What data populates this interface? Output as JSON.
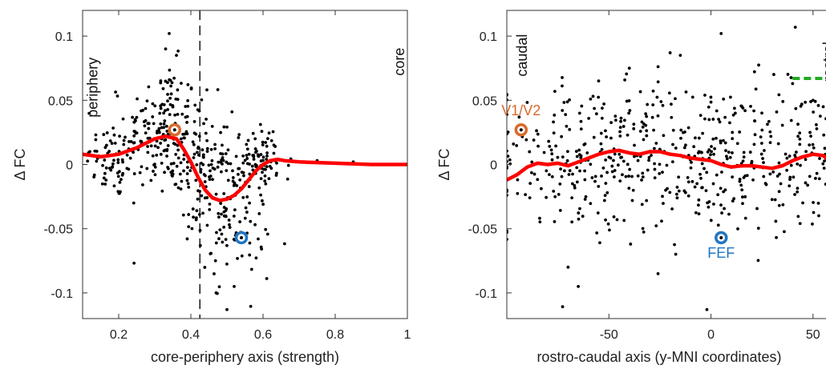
{
  "colors": {
    "points": "#000000",
    "fit": "#ff0000",
    "v1v2": "#d9692a",
    "fef": "#1f77c4",
    "rostral_line": "#22aa22",
    "axes": "#333333"
  },
  "chart_data": [
    {
      "type": "scatter",
      "xlabel": "core-periphery axis (strength)",
      "ylabel": "Δ FC",
      "xlim": [
        0.1,
        1.0
      ],
      "ylim": [
        -0.12,
        0.12
      ],
      "xticks": [
        0.2,
        0.4,
        0.6,
        0.8,
        1
      ],
      "xtick_labels": [
        "0.2",
        "0.4",
        "0.6",
        "0.8",
        "1"
      ],
      "yticks": [
        0.1,
        0.05,
        0,
        -0.05,
        -0.1
      ],
      "ytick_labels": [
        "0.1",
        "0.05",
        "0",
        "-0.05",
        "-0.1"
      ],
      "threshold_x": 0.425,
      "annotations": [
        {
          "text": "periphery",
          "x": 0.13,
          "y": 0.06,
          "rotated": true
        },
        {
          "text": "core",
          "x": 0.98,
          "y": 0.08,
          "rotated": true
        }
      ],
      "fit_line": {
        "x": [
          0.1,
          0.15,
          0.2,
          0.25,
          0.3,
          0.33,
          0.36,
          0.38,
          0.4,
          0.42,
          0.44,
          0.46,
          0.48,
          0.5,
          0.52,
          0.54,
          0.56,
          0.58,
          0.6,
          0.62,
          0.64,
          0.66,
          0.7,
          0.8,
          0.9,
          1.0
        ],
        "y": [
          0.008,
          0.006,
          0.008,
          0.013,
          0.02,
          0.022,
          0.02,
          0.012,
          0.002,
          -0.01,
          -0.02,
          -0.026,
          -0.028,
          -0.027,
          -0.024,
          -0.019,
          -0.012,
          -0.005,
          0.0,
          0.003,
          0.004,
          0.003,
          0.002,
          0.001,
          0.0,
          0.0
        ]
      },
      "highlighted": [
        {
          "name": "V1/V2",
          "x": 0.355,
          "y": 0.027,
          "color": "#d9692a"
        },
        {
          "name": "FEF",
          "x": 0.54,
          "y": -0.057,
          "color": "#1f77c4"
        }
      ],
      "scatter_clusters": [
        {
          "x_center": 0.19,
          "x_spread": 0.04,
          "y_center": 0.003,
          "y_spread": 0.015,
          "count": 70
        },
        {
          "x_center": 0.32,
          "x_spread": 0.05,
          "y_center": 0.028,
          "y_spread": 0.025,
          "count": 160
        },
        {
          "x_center": 0.42,
          "x_spread": 0.04,
          "y_center": 0.0,
          "y_spread": 0.025,
          "count": 100
        },
        {
          "x_center": 0.52,
          "x_spread": 0.05,
          "y_center": -0.03,
          "y_spread": 0.028,
          "count": 140
        },
        {
          "x_center": 0.6,
          "x_spread": 0.04,
          "y_center": 0.002,
          "y_spread": 0.012,
          "count": 60
        }
      ],
      "scatter_extra": [
        [
          0.34,
          0.102
        ],
        [
          0.33,
          0.09
        ],
        [
          0.36,
          0.085
        ],
        [
          0.5,
          -0.113
        ],
        [
          0.47,
          -0.1
        ],
        [
          0.52,
          -0.095
        ],
        [
          0.75,
          0.003
        ],
        [
          0.85,
          0.002
        ],
        [
          0.99,
          0.0
        ],
        [
          0.12,
          0.01
        ]
      ]
    },
    {
      "type": "scatter",
      "xlabel": "rostro-caudal axis (y-MNI coordinates)",
      "ylabel": "Δ FC",
      "xlim": [
        -100,
        65
      ],
      "ylim": [
        -0.12,
        0.12
      ],
      "xticks": [
        -50,
        0,
        50
      ],
      "xtick_labels": [
        "-50",
        "0",
        "50"
      ],
      "yticks": [
        0.1,
        0.05,
        0,
        -0.05,
        -0.1
      ],
      "ytick_labels": [
        "0.1",
        "0.05",
        "0",
        "-0.05",
        "-0.1"
      ],
      "annotations": [
        {
          "text": "caudal",
          "x": -92,
          "y": 0.085,
          "rotated": true
        },
        {
          "text": "rostral",
          "x": 58,
          "y": 0.08,
          "rotated": true
        }
      ],
      "fit_line": {
        "x": [
          -100,
          -95,
          -90,
          -85,
          -80,
          -75,
          -70,
          -65,
          -60,
          -55,
          -50,
          -45,
          -40,
          -35,
          -30,
          -25,
          -20,
          -15,
          -10,
          -5,
          0,
          5,
          10,
          15,
          20,
          25,
          30,
          35,
          40,
          45,
          50,
          55,
          60,
          65
        ],
        "y": [
          -0.012,
          -0.008,
          -0.002,
          0.001,
          0.0,
          0.001,
          -0.001,
          0.002,
          0.005,
          0.008,
          0.01,
          0.011,
          0.009,
          0.008,
          0.01,
          0.01,
          0.008,
          0.007,
          0.005,
          0.004,
          0.003,
          0.0,
          -0.002,
          -0.001,
          -0.001,
          -0.002,
          -0.003,
          -0.001,
          0.003,
          0.006,
          0.008,
          0.007,
          0.0,
          -0.03
        ]
      },
      "highlighted": [
        {
          "name": "V1/V2",
          "x": -93,
          "y": 0.027,
          "color": "#d9692a"
        },
        {
          "name": "FEF",
          "x": 5,
          "y": -0.057,
          "color": "#1f77c4"
        }
      ],
      "rostral_segment": {
        "x": [
          40,
          65
        ],
        "y": 0.067
      },
      "scatter_clusters": [
        {
          "x_center": -60,
          "x_spread": 25,
          "y_center": 0.005,
          "y_spread": 0.03,
          "count": 230
        },
        {
          "x_center": 0,
          "x_spread": 25,
          "y_center": 0.004,
          "y_spread": 0.03,
          "count": 230
        },
        {
          "x_center": 45,
          "x_spread": 12,
          "y_center": 0.008,
          "y_spread": 0.03,
          "count": 90
        }
      ],
      "scatter_extra": [
        [
          5,
          0.102
        ],
        [
          -20,
          0.087
        ],
        [
          -15,
          0.085
        ],
        [
          -2,
          -0.113
        ],
        [
          -65,
          -0.095
        ],
        [
          -70,
          -0.08
        ],
        [
          50,
          0.05
        ],
        [
          55,
          0.045
        ],
        [
          40,
          0.063
        ],
        [
          -40,
          0.075
        ]
      ]
    }
  ]
}
